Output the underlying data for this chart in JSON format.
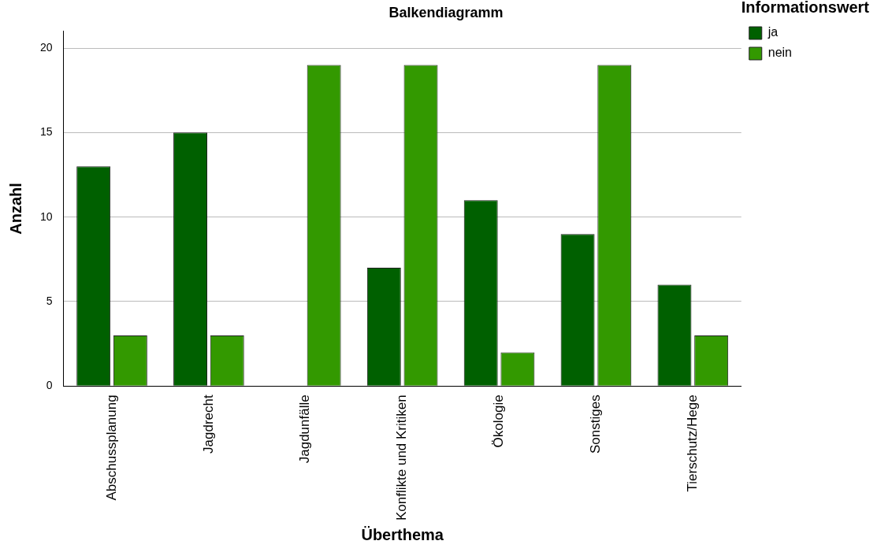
{
  "chart_data": {
    "type": "bar",
    "title": "Balkendiagramm",
    "xlabel": "Überthema",
    "ylabel": "Anzahl",
    "legend_title": "Informationswert",
    "categories": [
      "Abschussplanung",
      "Jagdrecht",
      "Jagdunfälle",
      "Konflikte und Kritiken",
      "Ökologie",
      "Sonstiges",
      "Tierschutz/Hege"
    ],
    "series": [
      {
        "name": "ja",
        "color": "#006000",
        "values": [
          13,
          15,
          0,
          7,
          11,
          9,
          6
        ]
      },
      {
        "name": "nein",
        "color": "#339900",
        "values": [
          3,
          3,
          19,
          19,
          2,
          19,
          3
        ]
      }
    ],
    "ylim": [
      0,
      21
    ],
    "yticks": [
      0,
      5,
      10,
      15,
      20
    ],
    "grid": "y",
    "legend": "top right"
  }
}
